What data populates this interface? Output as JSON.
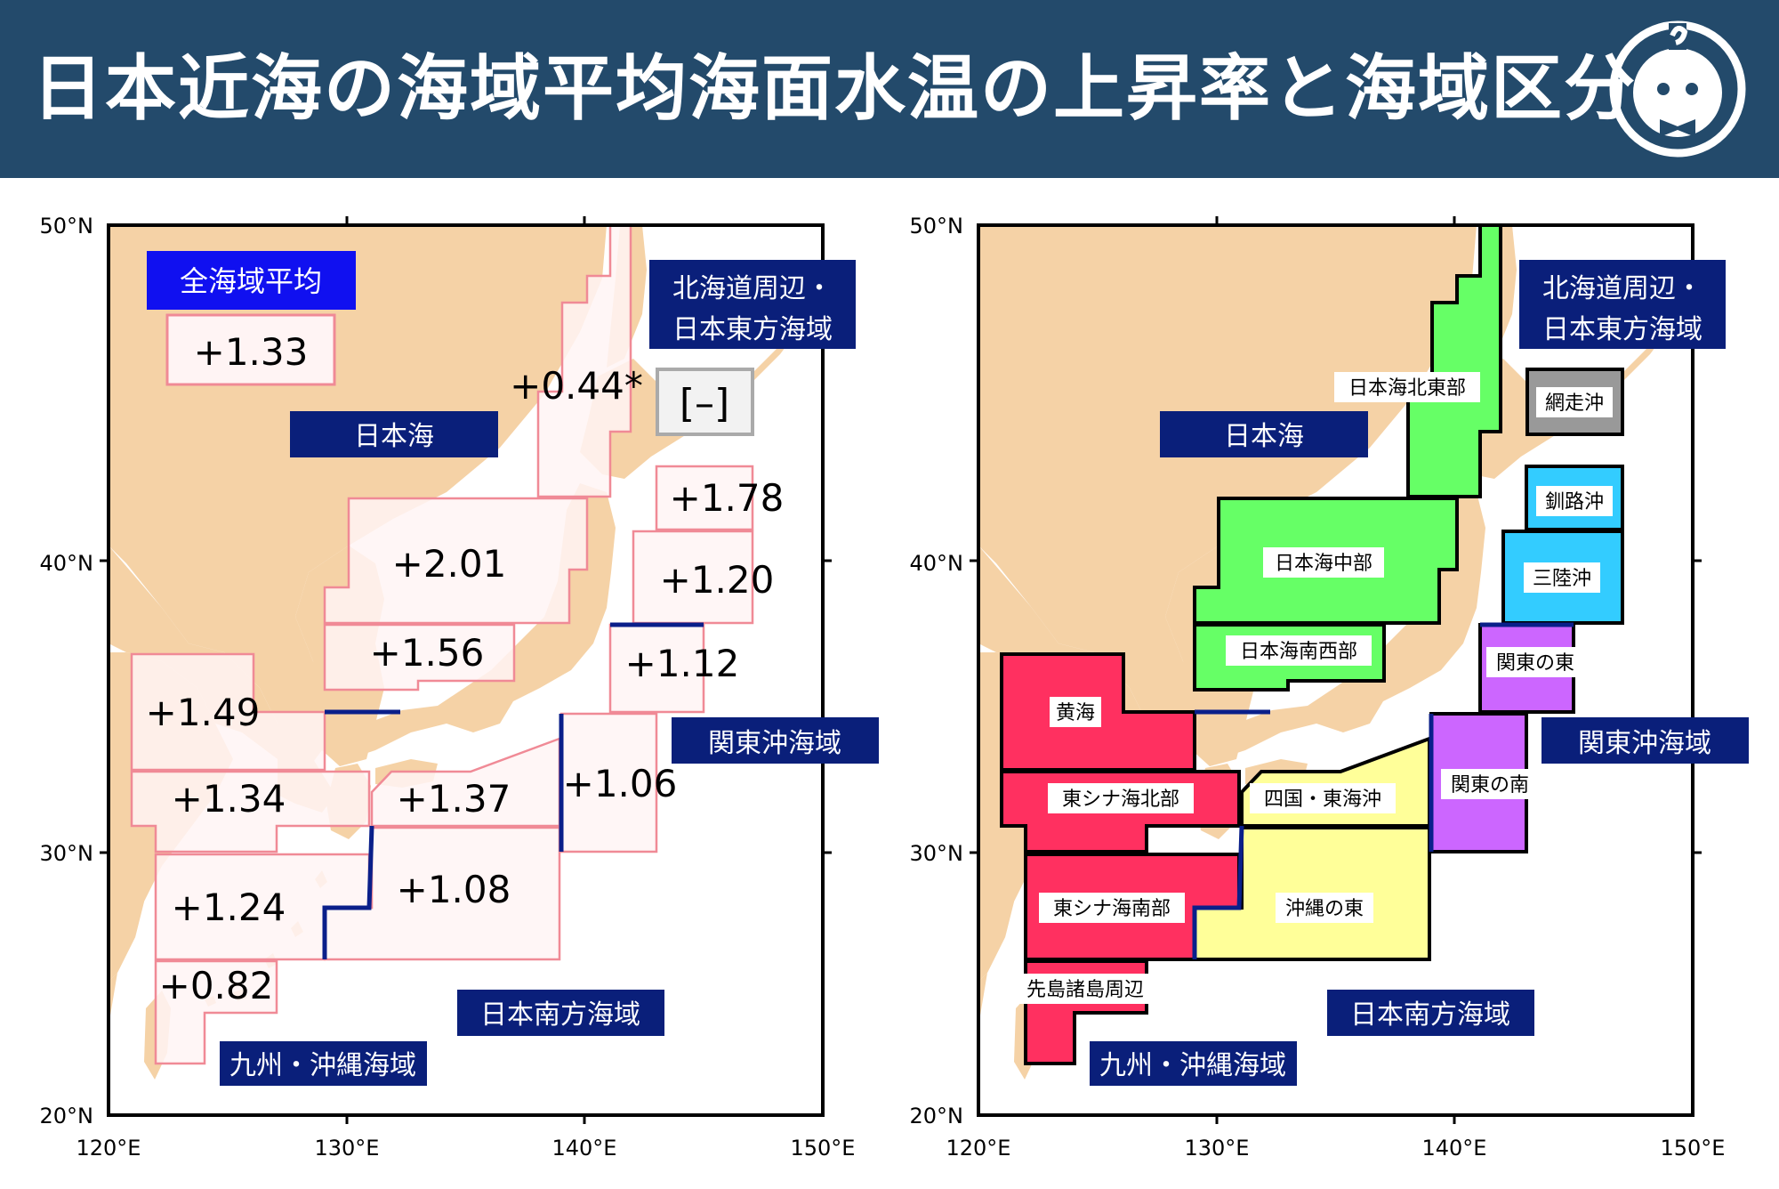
{
  "header": {
    "title": "日本近海の海域平均海面水温の上昇率と海域区分",
    "logo_icon": "mascot-face-icon"
  },
  "colors": {
    "header_bg": "#234a6b",
    "land": "#f5d2a6",
    "sea_fill_left": "#fff4f4",
    "sea_border_left": "#f08a96",
    "navy_label": "#0a1f7a",
    "blue_label": "#1010f0",
    "boundary_blue": "#0a1f8a",
    "nihonkai_north": "#66ff66",
    "nihonkai": "#66ff66",
    "yellow_sea_ecs": "#ff3060",
    "south_yellow": "#ffff99",
    "kanto_purple": "#cc66ff",
    "sanriku_cyan": "#33ccff",
    "abashiri_gray": "#999999"
  },
  "axes": {
    "lat_labels": [
      "50°N",
      "40°N",
      "30°N",
      "20°N"
    ],
    "lon_labels": [
      "120°E",
      "130°E",
      "140°E",
      "150°E"
    ]
  },
  "left_map": {
    "all_avg_label": "全海域平均",
    "all_avg_value": "+1.33",
    "values": {
      "nihonkai_north": "+0.44*",
      "abashiri": "[–]",
      "kushiro": "+1.78",
      "nihonkai_central": "+2.01",
      "sanriku": "+1.20",
      "nihonkai_southwest": "+1.56",
      "kanto_east": "+1.12",
      "yellow_sea": "+1.49",
      "kanto_south": "+1.06",
      "ecs_north": "+1.34",
      "shikoku_tokai": "+1.37",
      "ecs_south": "+1.24",
      "okinawa_east": "+1.08",
      "sakishima": "+0.82"
    },
    "region_labels": {
      "hokkaido": [
        "北海道周辺・",
        "日本東方海域"
      ],
      "nihonkai": "日本海",
      "kanto": "関東沖海域",
      "nihon_nanpo": "日本南方海域",
      "kyushu": "九州・沖縄海域"
    }
  },
  "right_map": {
    "area_names": {
      "nihonkai_north": "日本海北東部",
      "abashiri": "網走沖",
      "kushiro": "釧路沖",
      "nihonkai_central": "日本海中部",
      "sanriku": "三陸沖",
      "nihonkai_southwest": "日本海南西部",
      "kanto_east": "関東の東",
      "yellow_sea": "黄海",
      "kanto_south": "関東の南",
      "ecs_north": "東シナ海北部",
      "shikoku_tokai": "四国・東海沖",
      "ecs_south": "東シナ海南部",
      "okinawa_east": "沖縄の東",
      "sakishima": "先島諸島周辺"
    },
    "region_labels": {
      "hokkaido": [
        "北海道周辺・",
        "日本東方海域"
      ],
      "nihonkai": "日本海",
      "kanto": "関東沖海域",
      "nihon_nanpo": "日本南方海域",
      "kyushu": "九州・沖縄海域"
    }
  }
}
